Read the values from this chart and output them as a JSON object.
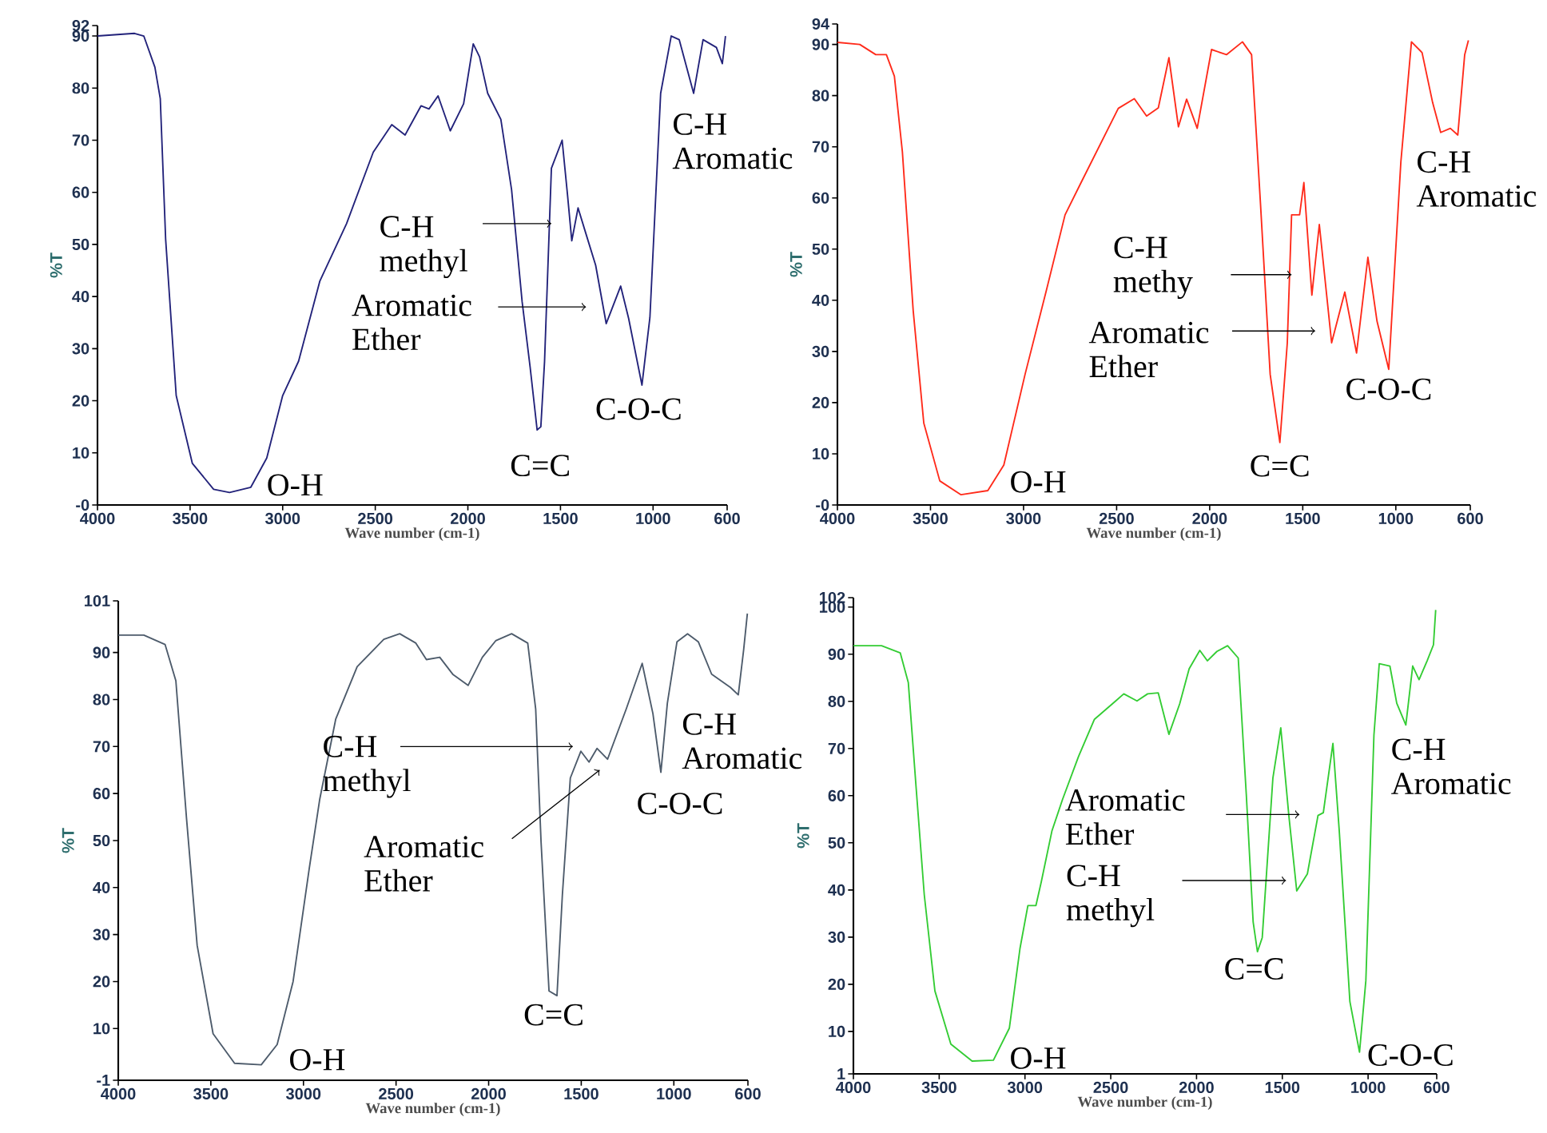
{
  "chart_data": [
    {
      "type": "line",
      "xlabel": "Wave number (cm-1)",
      "ylabel": "%T",
      "xlim": [
        4000,
        600
      ],
      "ylim": [
        0,
        92
      ],
      "xticks": [
        4000,
        3500,
        3000,
        2500,
        2000,
        1500,
        1000,
        600
      ],
      "yticks": [
        {
          "value": 0,
          "label": "-0"
        },
        10,
        20,
        30,
        40,
        50,
        60,
        70,
        80,
        90,
        92
      ],
      "series": [
        {
          "color": "#22227a",
          "x": [
            4000,
            3800,
            3750,
            3690,
            3661,
            3632,
            3575,
            3488,
            3373,
            3287,
            3172,
            3086,
            3000,
            2914,
            2799,
            2655,
            2511,
            2411,
            2339,
            2253,
            2210,
            2161,
            2095,
            2023,
            1971,
            1937,
            1893,
            1822,
            1764,
            1707,
            1664,
            1626,
            1606,
            1586,
            1549,
            1491,
            1462,
            1439,
            1405,
            1362,
            1310,
            1253,
            1175,
            1132,
            1060,
            1017,
            959,
            902,
            859,
            781,
            730,
            658,
            626,
            609
          ],
          "values": [
            90,
            90.5,
            90,
            84,
            78,
            51,
            21,
            8,
            3,
            2.4,
            3.4,
            9,
            21,
            27.6,
            43,
            54,
            67.7,
            73,
            71,
            76.6,
            76,
            78.5,
            71.8,
            77,
            88.5,
            86,
            79,
            74,
            60.5,
            39,
            26.5,
            14.4,
            15,
            27.5,
            64.6,
            70,
            59.5,
            50.7,
            57,
            52,
            46,
            34.8,
            42,
            35.8,
            23,
            36,
            79,
            90,
            89.3,
            79,
            89.3,
            87.8,
            84.7,
            90
          ]
        }
      ],
      "annotations": [
        {
          "text": "O-H",
          "x": 3330,
          "y": 2
        },
        {
          "text": "C=C",
          "x": 1626,
          "y": 14
        },
        {
          "text": "C-O-C",
          "x": 1060,
          "y": 23
        },
        {
          "text": "C-H Aromatic",
          "x": 781,
          "y": 79
        },
        {
          "text": "C-H methyl",
          "x": 1549,
          "y": 54
        },
        {
          "text": "Aromatic Ether",
          "x": 1362,
          "y": 38
        }
      ]
    },
    {
      "type": "line",
      "xlabel": "Wave number (cm-1)",
      "ylabel": "%T",
      "xlim": [
        4000,
        600
      ],
      "ylim": [
        0,
        94
      ],
      "xticks": [
        4000,
        3500,
        3000,
        2500,
        2000,
        1500,
        1000,
        600
      ],
      "yticks": [
        {
          "value": 0,
          "label": "-0"
        },
        10,
        20,
        30,
        40,
        50,
        60,
        70,
        80,
        90,
        94
      ],
      "series": [
        {
          "color": "#ff2a1a",
          "x": [
            4000,
            3880,
            3794,
            3737,
            3694,
            3651,
            3593,
            3536,
            3450,
            3336,
            3192,
            3106,
            2992,
            2877,
            2777,
            2691,
            2491,
            2405,
            2339,
            2276,
            2219,
            2168,
            2124,
            2067,
            1990,
            1910,
            1824,
            1775,
            1727,
            1675,
            1623,
            1583,
            1560,
            1517,
            1494,
            1451,
            1411,
            1345,
            1274,
            1211,
            1150,
            1101,
            1038,
            973,
            916,
            859,
            802,
            759,
            707,
            667,
            630,
            610
          ],
          "values": [
            90.4,
            90,
            88,
            88,
            83.8,
            69,
            38,
            16,
            4.7,
            2,
            2.8,
            7.8,
            25.5,
            42,
            56.7,
            63,
            77.5,
            79.4,
            76,
            77.6,
            87.4,
            73.9,
            79.3,
            73.6,
            89,
            88,
            90.5,
            88,
            58.8,
            25.5,
            12.2,
            31.7,
            56.7,
            56.7,
            63,
            41,
            54.8,
            31.7,
            41.6,
            29.7,
            48.4,
            35.9,
            26.5,
            67,
            90.5,
            88.4,
            78.6,
            72.8,
            73.6,
            72.3,
            88,
            90.8
          ]
        }
      ],
      "annotations": [
        {
          "text": "O-H",
          "x": 3300,
          "y": 2
        },
        {
          "text": "C=C",
          "x": 1623,
          "y": 12
        },
        {
          "text": "C-O-C",
          "x": 1038,
          "y": 27
        },
        {
          "text": "C-H Aromatic",
          "x": 707,
          "y": 74
        },
        {
          "text": "C-H methy",
          "x": 1560,
          "y": 45
        },
        {
          "text": "Aromatic Ether",
          "x": 1433,
          "y": 34
        }
      ]
    },
    {
      "type": "line",
      "xlabel": "Wave number (cm-1)",
      "ylabel": "%T",
      "xlim": [
        4000,
        600
      ],
      "ylim": [
        -1,
        101
      ],
      "xticks": [
        4000,
        3500,
        3000,
        2500,
        2000,
        1500,
        1000,
        600
      ],
      "yticks": [
        -1,
        10,
        20,
        30,
        40,
        50,
        60,
        70,
        80,
        90,
        101
      ],
      "series": [
        {
          "color": "#4d5b6b",
          "x": [
            4000,
            3862,
            3747,
            3689,
            3632,
            3574,
            3488,
            3372,
            3228,
            3142,
            3056,
            2969,
            2912,
            2826,
            2710,
            2566,
            2480,
            2393,
            2336,
            2264,
            2192,
            2111,
            2034,
            1962,
            1876,
            1789,
            1746,
            1717,
            1674,
            1631,
            1602,
            1559,
            1502,
            1458,
            1415,
            1358,
            1257,
            1171,
            1113,
            1070,
            1035,
            983,
            926,
            868,
            796,
            695,
            652,
            623,
            603
          ],
          "values": [
            93.7,
            93.7,
            91.7,
            84,
            55,
            27.7,
            8.9,
            2.6,
            2.3,
            6.6,
            20,
            44,
            58.8,
            75.8,
            87,
            92.8,
            94,
            92,
            88.5,
            89,
            85.3,
            83,
            89,
            92.5,
            94,
            92,
            78,
            49.7,
            18,
            17,
            38.4,
            63.3,
            69,
            66.7,
            69.6,
            67.3,
            78,
            87.7,
            77,
            64.5,
            79.2,
            92.3,
            94,
            92.3,
            85.4,
            82.6,
            81,
            90.6,
            98.3
          ]
        }
      ],
      "annotations": [
        {
          "text": "O-H",
          "x": 3228,
          "y": 2
        },
        {
          "text": "C=C",
          "x": 1631,
          "y": 17
        },
        {
          "text": "C-O-C",
          "x": 1070,
          "y": 65
        },
        {
          "text": "C-H Aromatic",
          "x": 652,
          "y": 81
        },
        {
          "text": "C-H methyl",
          "x": 1545,
          "y": 70
        },
        {
          "text": "Aromatic Ether",
          "x": 1400,
          "y": 65
        }
      ]
    },
    {
      "type": "line",
      "xlabel": "Wave number (cm-1)",
      "ylabel": "%T",
      "xlim": [
        4000,
        600
      ],
      "ylim": [
        1,
        102
      ],
      "xticks": [
        4000,
        3500,
        3000,
        2500,
        2000,
        1500,
        1000,
        600
      ],
      "yticks": [
        1,
        10,
        20,
        30,
        40,
        50,
        60,
        70,
        80,
        90,
        100,
        102
      ],
      "series": [
        {
          "color": "#33cc33",
          "x": [
            4000,
            3836,
            3727,
            3680,
            3634,
            3587,
            3525,
            3432,
            3308,
            3184,
            3091,
            3029,
            2983,
            2936,
            2905,
            2843,
            2781,
            2688,
            2595,
            2471,
            2424,
            2347,
            2285,
            2223,
            2161,
            2098,
            2043,
            1981,
            1937,
            1881,
            1819,
            1757,
            1710,
            1670,
            1645,
            1617,
            1555,
            1509,
            1462,
            1416,
            1354,
            1292,
            1261,
            1205,
            1168,
            1106,
            1050,
            1013,
            966,
            935,
            873,
            833,
            780,
            740,
            703,
            656,
            619,
            606
          ],
          "values": [
            91.8,
            91.8,
            90.3,
            84,
            61.5,
            39,
            18.6,
            7.3,
            3.7,
            3.9,
            10.7,
            27.6,
            36.7,
            36.7,
            41.7,
            52.5,
            59.2,
            68.3,
            76.2,
            80.1,
            81.6,
            80.1,
            81.6,
            81.8,
            73,
            79.5,
            86.9,
            90.8,
            88.6,
            90.6,
            91.8,
            89.2,
            60.3,
            33.2,
            26.9,
            29.9,
            63.7,
            74.4,
            55.8,
            39.8,
            43.4,
            55.8,
            56.4,
            71.1,
            52.5,
            16.3,
            5.6,
            20.8,
            72.8,
            88,
            87.5,
            79.6,
            75,
            87.5,
            84.6,
            88.6,
            92,
            99.4
          ]
        }
      ],
      "annotations": [
        {
          "text": "O-H",
          "x": 3250,
          "y": 4
        },
        {
          "text": "C=C",
          "x": 1645,
          "y": 27
        },
        {
          "text": "C-O-C",
          "x": 1050,
          "y": 6
        },
        {
          "text": "C-H Aromatic",
          "x": 780,
          "y": 75
        },
        {
          "text": "Aromatic Ether",
          "x": 1400,
          "y": 56
        },
        {
          "text": "C-H methyl",
          "x": 1478,
          "y": 42
        }
      ]
    }
  ]
}
